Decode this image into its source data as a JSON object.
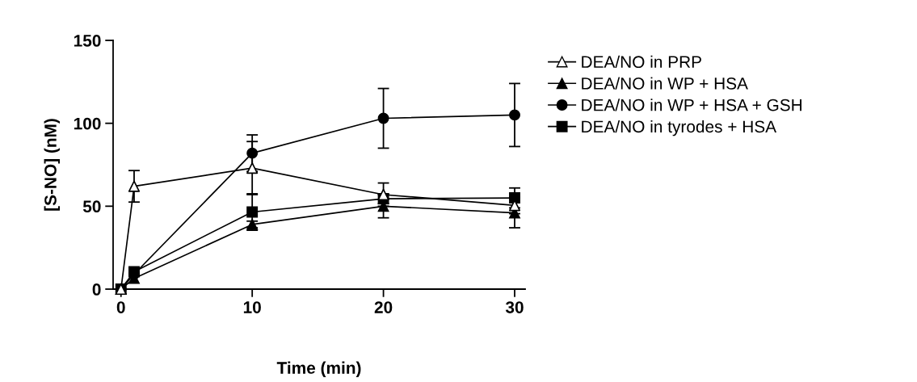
{
  "chart_data": {
    "type": "line",
    "xlabel": "Time (min)",
    "ylabel": "[S-NO] (nM)",
    "x": [
      0,
      1,
      10,
      20,
      30
    ],
    "series": [
      {
        "name": "DEA/NO in PRP",
        "color": "#000000",
        "marker": "triangle",
        "colors": [
          "#ffffff",
          "#ffffff",
          "#ffffff",
          "#ffffff",
          "#ffffff"
        ],
        "values": [
          0,
          62,
          73,
          57,
          50.5
        ],
        "errors": [
          null,
          9.5,
          16,
          7,
          5
        ]
      },
      {
        "name": "DEA/NO in WP + HSA",
        "color": "#000000",
        "marker": "triangle",
        "values": [
          0,
          6.5,
          39,
          50,
          46
        ],
        "errors": [
          null,
          null,
          2,
          7,
          9
        ]
      },
      {
        "name": "DEA/NO in WP + HSA + GSH",
        "color": "#000000",
        "marker": "circle",
        "values": [
          0,
          9,
          82,
          103,
          105
        ],
        "errors": [
          null,
          null,
          11,
          18,
          19
        ]
      },
      {
        "name": "DEA/NO in tyrodes + HSA",
        "color": "#000000",
        "marker": "square",
        "values": [
          0,
          10.5,
          46.5,
          54.5,
          55
        ],
        "errors": [
          null,
          null,
          11,
          3,
          6
        ]
      }
    ],
    "xlim": [
      -0.6,
      30.8
    ],
    "xticks": [
      0,
      10,
      20,
      30
    ],
    "ylim": [
      0,
      150
    ],
    "yticks": [
      0,
      50,
      100,
      150
    ],
    "grid": false,
    "legend": "top right"
  }
}
